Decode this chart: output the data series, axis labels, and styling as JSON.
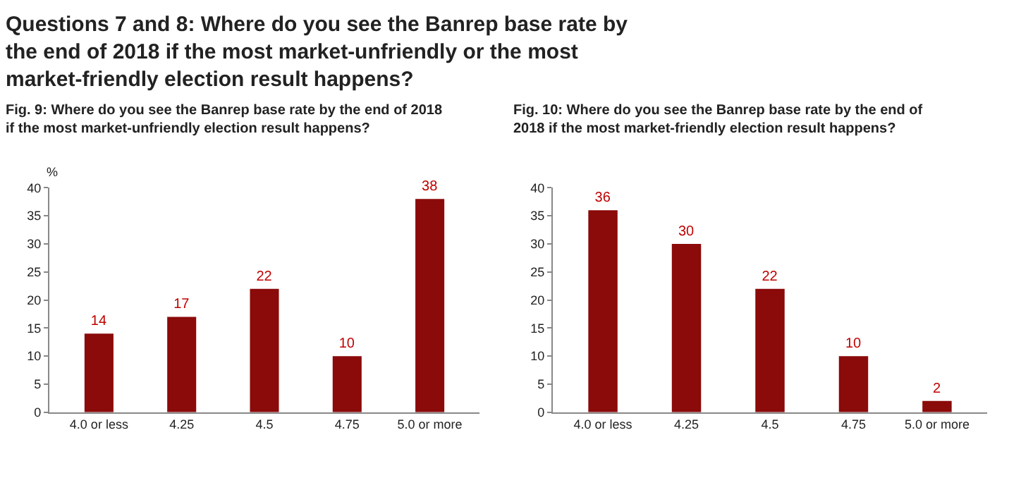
{
  "chart_data": [
    {
      "type": "bar",
      "title": "Questions 7 and 8: Where do you see the Banrep base rate by the end of 2018 if the most market-unfriendly or the most market-friendly election result happens?",
      "subtitle": "Fig. 9: Where do you see the Banrep base rate by the end of 2018 if the most market-unfriendly election result happens?",
      "ylabel": "%",
      "categories": [
        "4.0 or less",
        "4.25",
        "4.5",
        "4.75",
        "5.0 or more"
      ],
      "values": [
        14,
        17,
        22,
        10,
        38
      ],
      "color": "#8b0a0a",
      "ylim": [
        0,
        40
      ],
      "yticks": [
        0,
        5,
        10,
        15,
        20,
        25,
        30,
        35,
        40
      ],
      "data_labels": true
    },
    {
      "type": "bar",
      "title": "Fig. 10: Where do you see the Banrep base rate by the end of 2018 if the most market-friendly election result happens?",
      "categories": [
        "4.0 or less",
        "4.25",
        "4.5",
        "4.75",
        "5.0 or more"
      ],
      "values": [
        36,
        30,
        22,
        10,
        2
      ],
      "color": "#8b0a0a",
      "ylim": [
        0,
        40
      ],
      "yticks": [
        0,
        5,
        10,
        15,
        20,
        25,
        30,
        35,
        40
      ],
      "data_labels": true
    }
  ]
}
